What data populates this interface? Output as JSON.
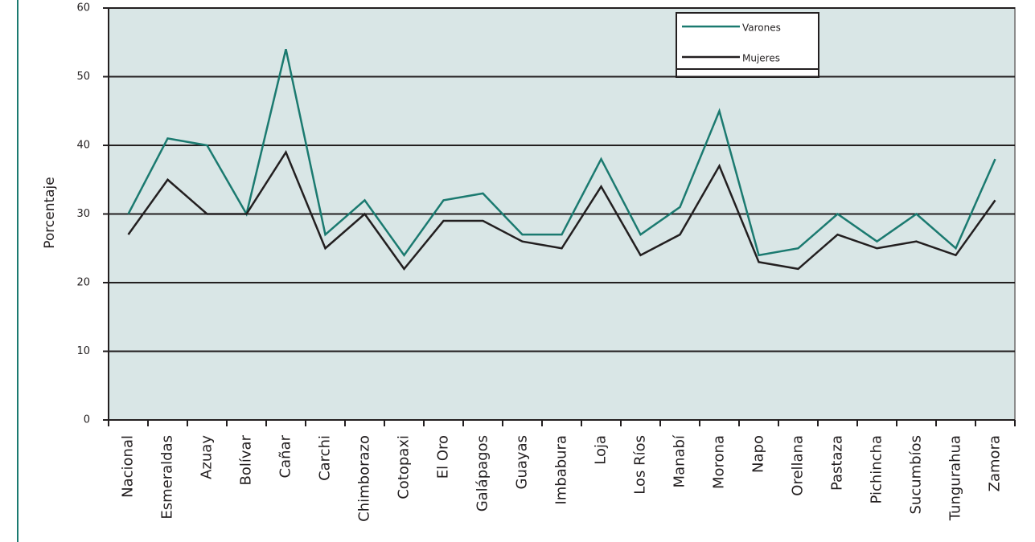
{
  "chart_data": {
    "type": "line",
    "y_label": "Porcentaje",
    "categories": [
      "Nacional",
      "Esmeraldas",
      "Azuay",
      "Bolívar",
      "Cañar",
      "Carchi",
      "Chimborazo",
      "Cotopaxi",
      "El Oro",
      "Galápagos",
      "Guayas",
      "Imbabura",
      "Loja",
      "Los Ríos",
      "Manabí",
      "Morona",
      "Napo",
      "Orellana",
      "Pastaza",
      "Pichincha",
      "Sucumbíos",
      "Tungurahua",
      "Zamora"
    ],
    "series": [
      {
        "name": "Varones",
        "color": "#1b7a70",
        "values": [
          30,
          41,
          40,
          30,
          54,
          27,
          32,
          24,
          32,
          33,
          27,
          27,
          38,
          27,
          31,
          45,
          24,
          25,
          30,
          26,
          30,
          25,
          38
        ]
      },
      {
        "name": "Mujeres",
        "color": "#231f20",
        "values": [
          27,
          35,
          30,
          30,
          39,
          25,
          30,
          22,
          29,
          29,
          26,
          25,
          34,
          24,
          27,
          37,
          23,
          22,
          27,
          25,
          26,
          24,
          32
        ]
      }
    ],
    "ylim": [
      0,
      60
    ],
    "yticks": [
      0,
      10,
      20,
      30,
      40,
      50,
      60
    ],
    "grid": true
  }
}
